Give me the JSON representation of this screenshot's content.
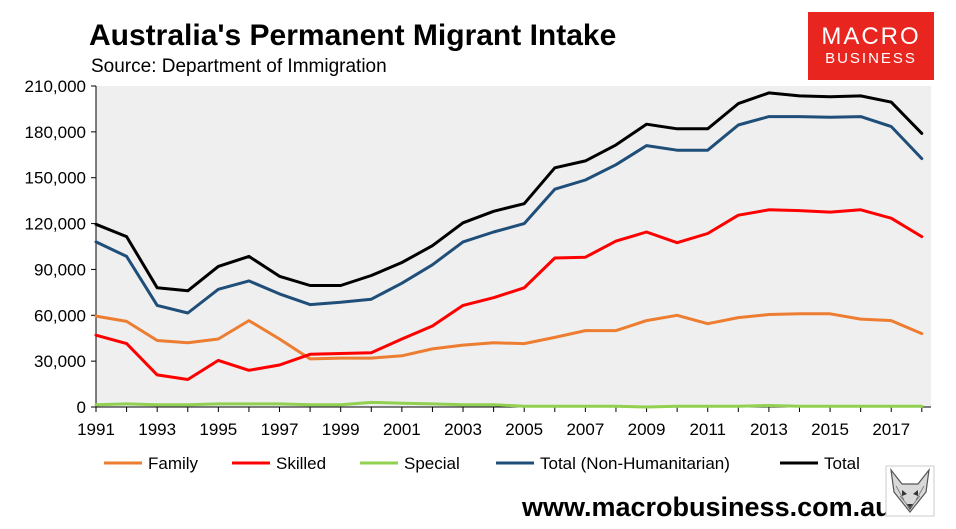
{
  "header": {
    "title": "Australia's Permanent Migrant Intake",
    "subtitle": "Source: Department of Immigration"
  },
  "logo": {
    "line1": "MACRO",
    "line2": "BUSINESS",
    "color": "#e8251f"
  },
  "footer": {
    "website": "www.macrobusiness.com.au",
    "fox_icon": "fox-logo-icon"
  },
  "chart_data": {
    "type": "line",
    "title": "Australia's Permanent Migrant Intake",
    "xlabel": "",
    "ylabel": "",
    "ylim": [
      0,
      210000
    ],
    "yticks": [
      0,
      30000,
      60000,
      90000,
      120000,
      150000,
      180000,
      210000
    ],
    "ytick_labels": [
      "0",
      "30,000",
      "60,000",
      "90,000",
      "120,000",
      "150,000",
      "180,000",
      "210,000"
    ],
    "xlim": [
      1991,
      2018.3
    ],
    "xtick_labels": [
      "1991",
      "1993",
      "1995",
      "1997",
      "1999",
      "2001",
      "2003",
      "2005",
      "2007",
      "2009",
      "2011",
      "2013",
      "2015",
      "2017"
    ],
    "grid": false,
    "plot_background": "#efefef",
    "legend_position": "bottom",
    "x": [
      1991,
      1992,
      1993,
      1994,
      1995,
      1996,
      1997,
      1998,
      1999,
      2000,
      2001,
      2002,
      2003,
      2004,
      2005,
      2006,
      2007,
      2008,
      2009,
      2010,
      2011,
      2012,
      2013,
      2014,
      2015,
      2016,
      2017,
      2018
    ],
    "series": [
      {
        "name": "Family",
        "color": "#ed7d31",
        "values": [
          59500,
          56000,
          43500,
          42000,
          44500,
          56500,
          44500,
          31500,
          32000,
          32000,
          33500,
          38000,
          40500,
          42000,
          41500,
          45500,
          50000,
          50000,
          56500,
          60000,
          54500,
          58500,
          60500,
          61000,
          61000,
          57500,
          56500,
          48000
        ]
      },
      {
        "name": "Skilled",
        "color": "#ff0000",
        "values": [
          47000,
          41500,
          21000,
          18000,
          30500,
          24000,
          27500,
          34500,
          35000,
          35500,
          44500,
          53000,
          66500,
          71500,
          78000,
          97500,
          98000,
          108500,
          114500,
          107500,
          113500,
          125500,
          129000,
          128500,
          127500,
          129000,
          123500,
          111500
        ]
      },
      {
        "name": "Special",
        "color": "#92d050",
        "values": [
          1500,
          2000,
          1500,
          1500,
          2000,
          2000,
          2000,
          1500,
          1500,
          3000,
          2500,
          2000,
          1500,
          1500,
          500,
          500,
          500,
          500,
          0,
          500,
          500,
          500,
          1000,
          500,
          500,
          500,
          500,
          500
        ]
      },
      {
        "name": "Total (Non-Humanitarian)",
        "color": "#1f4e79",
        "values": [
          108000,
          98500,
          66500,
          61500,
          77000,
          82500,
          74000,
          67000,
          68500,
          70500,
          81000,
          93000,
          108000,
          114500,
          120000,
          142500,
          148500,
          158500,
          171000,
          168000,
          168000,
          184500,
          190000,
          190000,
          189500,
          190000,
          183500,
          162500
        ]
      },
      {
        "name": "Total",
        "color": "#000000",
        "values": [
          119500,
          111500,
          78000,
          76000,
          92000,
          98500,
          85500,
          79500,
          79500,
          86000,
          94500,
          105500,
          120500,
          128000,
          133000,
          156500,
          161000,
          171500,
          185000,
          182000,
          182000,
          198500,
          205500,
          203500,
          203000,
          203500,
          199500,
          179000
        ]
      }
    ]
  }
}
